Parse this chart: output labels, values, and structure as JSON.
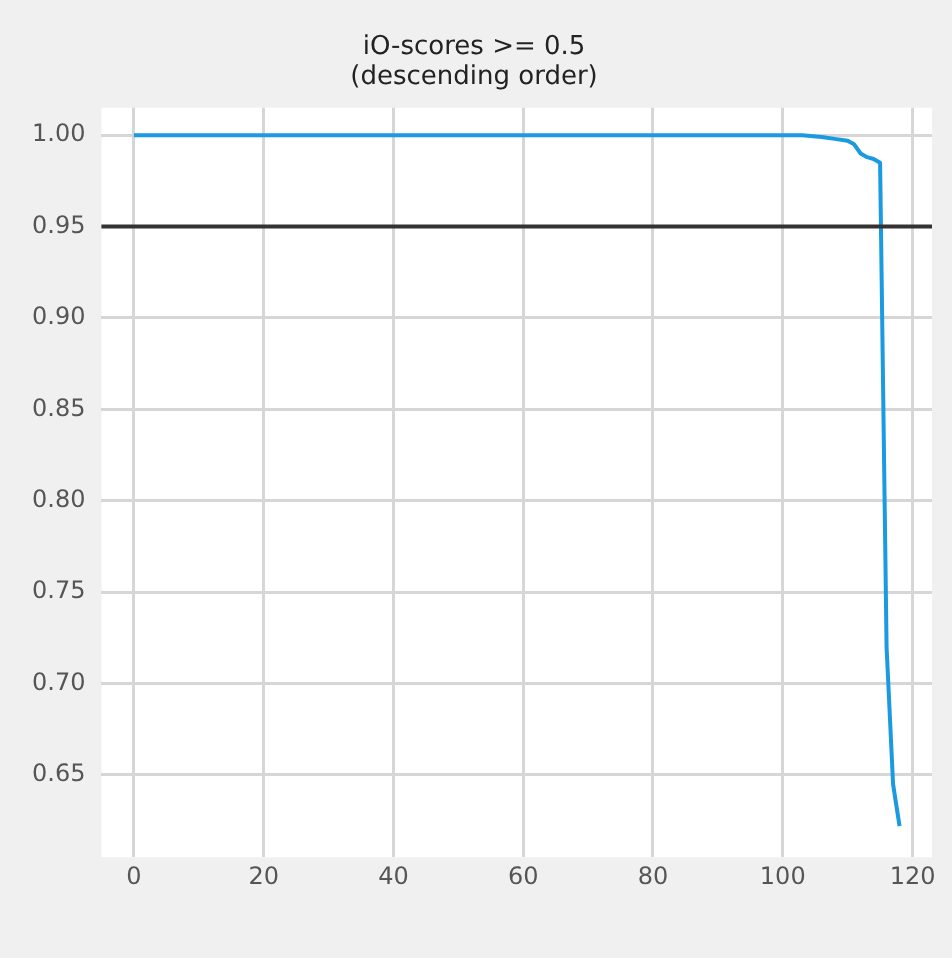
{
  "chart_data": {
    "type": "line",
    "title": [
      "iO-scores >= 0.5",
      "(descending order)"
    ],
    "series": [
      {
        "color": "#1a9ae0",
        "x": [
          0,
          20,
          40,
          60,
          80,
          100,
          103,
          106,
          108,
          110,
          111,
          112,
          113,
          114,
          115,
          116,
          117,
          118
        ],
        "values": [
          1.0,
          1.0,
          1.0,
          1.0,
          1.0,
          1.0,
          1.0,
          0.999,
          0.998,
          0.997,
          0.995,
          0.99,
          0.988,
          0.987,
          0.985,
          0.72,
          0.645,
          0.622
        ]
      }
    ],
    "xlim": [
      -5,
      123
    ],
    "xticks": [
      0,
      20,
      40,
      60,
      80,
      100,
      120
    ],
    "ylim": [
      0.605,
      1.015
    ],
    "yticks": [
      {
        "value": 0.65,
        "label": "0.65"
      },
      {
        "value": 0.7,
        "label": "0.70"
      },
      {
        "value": 0.75,
        "label": "0.75"
      },
      {
        "value": 0.8,
        "label": "0.80"
      },
      {
        "value": 0.85,
        "label": "0.85"
      },
      {
        "value": 0.9,
        "label": "0.90"
      },
      {
        "value": 0.95,
        "label": "0.95"
      },
      {
        "value": 1.0,
        "label": "1.00"
      }
    ],
    "ref_lines": [
      {
        "axis": "y",
        "value": 0.95,
        "color": "#333333"
      }
    ],
    "grid": true,
    "marker": "none",
    "line_style": "solid",
    "legend": false
  }
}
